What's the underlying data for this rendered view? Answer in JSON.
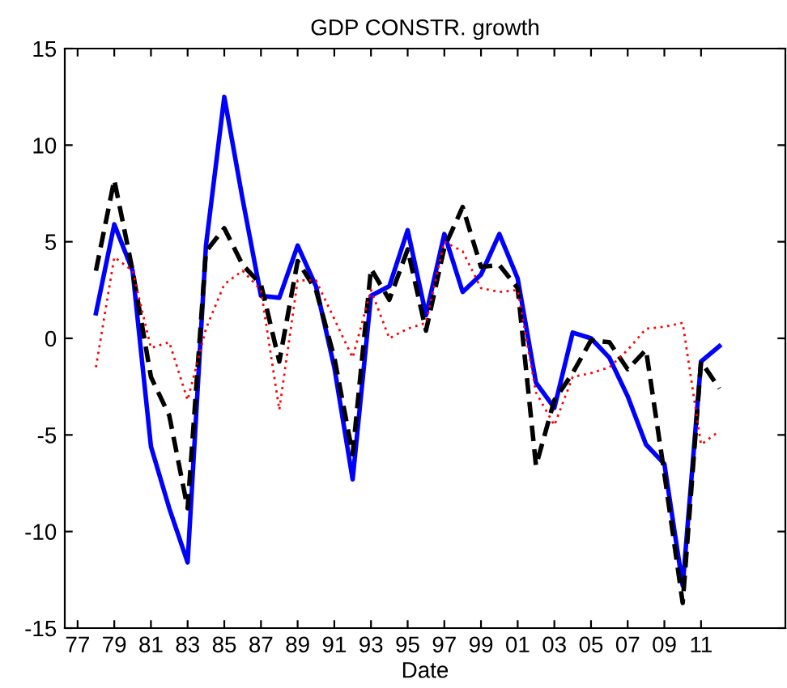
{
  "chart_data": {
    "type": "line",
    "title": "GDP CONSTR. growth",
    "xlabel": "Date",
    "x": [
      1978,
      1979,
      1980,
      1981,
      1982,
      1983,
      1984,
      1985,
      1986,
      1987,
      1988,
      1989,
      1990,
      1991,
      1992,
      1993,
      1994,
      1995,
      1996,
      1997,
      1998,
      1999,
      2000,
      2001,
      2002,
      2003,
      2004,
      2005,
      2006,
      2007,
      2008,
      2009,
      2010,
      2011,
      2012
    ],
    "series": [
      {
        "color": "#0000ff",
        "line_style": "solid",
        "values": [
          1.3,
          5.9,
          3.5,
          -5.6,
          -8.8,
          -11.6,
          4.8,
          12.5,
          7.2,
          2.2,
          2.1,
          4.8,
          2.7,
          -1.5,
          -7.3,
          2.2,
          2.7,
          5.6,
          1.2,
          5.4,
          2.4,
          3.3,
          5.4,
          3.1,
          -2.3,
          -3.6,
          0.3,
          0,
          -1,
          -3,
          -5.5,
          -6.5,
          -12.8,
          -1.2,
          -0.4
        ]
      },
      {
        "color": "#000000",
        "line_style": "dashed",
        "values": [
          3.5,
          8.2,
          3.5,
          -2.0,
          -4.0,
          -8.8,
          4.5,
          5.7,
          3.8,
          2.8,
          -1.2,
          4.0,
          2.5,
          -1.0,
          -6.0,
          3.6,
          2.0,
          4.6,
          0.4,
          4.7,
          6.8,
          3.7,
          3.8,
          2.6,
          -6.6,
          -3.2,
          -1.8,
          -0.1,
          -0.2,
          -1.6,
          -0.6,
          -7.0,
          -13.7,
          -1.2,
          -2.6
        ]
      },
      {
        "color": "#ff0000",
        "line_style": "dotted",
        "values": [
          -1.5,
          4.2,
          3.5,
          -0.5,
          -0.2,
          -3.2,
          0.5,
          2.8,
          3.5,
          2.5,
          -3.7,
          3.0,
          3.0,
          1.0,
          -1.0,
          2.5,
          0,
          0.5,
          0.8,
          5.0,
          4.5,
          2.6,
          2.4,
          2.5,
          -2.8,
          -4.5,
          -2.0,
          -1.8,
          -1.5,
          -0.6,
          0.5,
          0.6,
          0.8,
          -5.5,
          -4.8
        ]
      }
    ],
    "xlim": [
      1976.3,
      2015.6
    ],
    "xticks": [
      {
        "value": 1977,
        "label": "77"
      },
      {
        "value": 1979,
        "label": "79"
      },
      {
        "value": 1981,
        "label": "81"
      },
      {
        "value": 1983,
        "label": "83"
      },
      {
        "value": 1985,
        "label": "85"
      },
      {
        "value": 1987,
        "label": "87"
      },
      {
        "value": 1989,
        "label": "89"
      },
      {
        "value": 1991,
        "label": "91"
      },
      {
        "value": 1993,
        "label": "93"
      },
      {
        "value": 1995,
        "label": "95"
      },
      {
        "value": 1997,
        "label": "97"
      },
      {
        "value": 1999,
        "label": "99"
      },
      {
        "value": 2001,
        "label": "01"
      },
      {
        "value": 2003,
        "label": "03"
      },
      {
        "value": 2005,
        "label": "05"
      },
      {
        "value": 2007,
        "label": "07"
      },
      {
        "value": 2009,
        "label": "09"
      },
      {
        "value": 2011,
        "label": "11"
      }
    ],
    "ylim": [
      -15,
      15
    ],
    "yticks": [
      -15,
      -10,
      -5,
      0,
      5,
      10,
      15
    ],
    "grid": false
  }
}
